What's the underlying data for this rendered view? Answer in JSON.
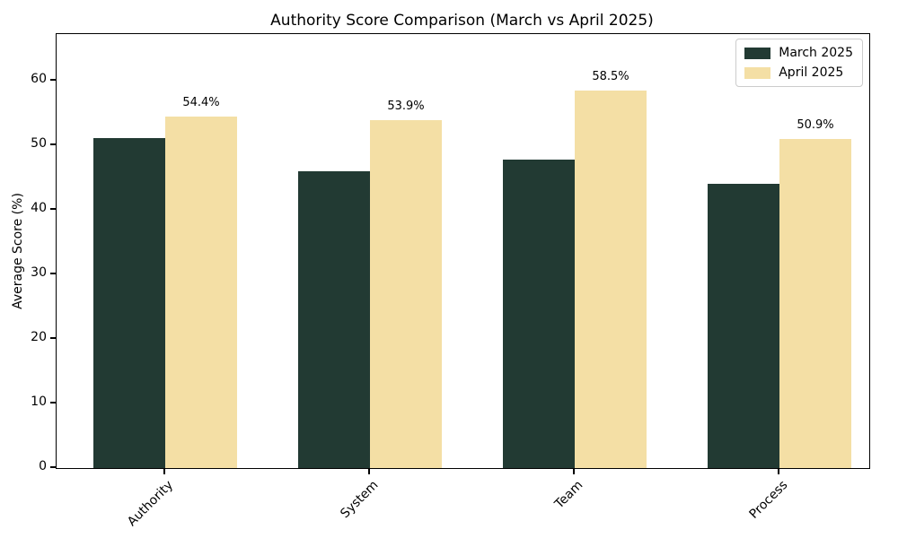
{
  "chart_data": {
    "type": "bar",
    "title": "Authority Score Comparison (March vs April 2025)",
    "xlabel": "",
    "ylabel": "Average Score (%)",
    "categories": [
      "Authority",
      "System",
      "Team",
      "Process"
    ],
    "series": [
      {
        "name": "March 2025",
        "color": "#223a33",
        "values": [
          51.1,
          45.9,
          47.7,
          44.0
        ],
        "value_labels": [
          "",
          "",
          "",
          ""
        ]
      },
      {
        "name": "April 2025",
        "color": "#f4dfa5",
        "values": [
          54.4,
          53.9,
          58.5,
          50.9
        ],
        "value_labels": [
          "54.4%",
          "53.9%",
          "58.5%",
          "50.9%"
        ]
      }
    ],
    "yticks": [
      0,
      10,
      20,
      30,
      40,
      50,
      60
    ],
    "ylim": [
      0,
      67.2
    ],
    "grid": false,
    "legend_position": "upper right",
    "background_color": "#ffffff",
    "spine_color": "#000000"
  }
}
